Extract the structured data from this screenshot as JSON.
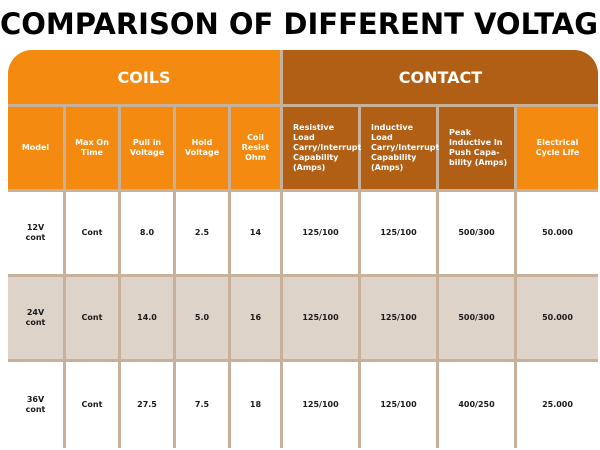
{
  "title": "COMPARISON OF DIFFERENT VOLTAGE",
  "groups": {
    "coils": "COILS",
    "contact": "CONTACT"
  },
  "columns": [
    "Model",
    "Max On Time",
    "Pull in Voltage",
    "Hold Voltage",
    "Coil Resist Ohm",
    "Resistive Load Carry/Interrupt Capability (Amps)",
    "Inductive Load Carry/Interrupt Capability (Amps)",
    "Peak Inductive In Push Capa-bility (Amps)",
    "Electrical Cycle Life"
  ],
  "rows": [
    [
      "12V cont",
      "Cont",
      "8.0",
      "2.5",
      "14",
      "125/100",
      "125/100",
      "500/300",
      "50.000"
    ],
    [
      "24V cont",
      "Cont",
      "14.0",
      "5.0",
      "16",
      "125/100",
      "125/100",
      "500/300",
      "50.000"
    ],
    [
      "36V cont",
      "Cont",
      "27.5",
      "7.5",
      "18",
      "125/100",
      "125/100",
      "400/250",
      "25.000"
    ]
  ],
  "colors": {
    "coils_orange": "#f48a0f",
    "contact_brown": "#b25f16",
    "row_shade": "#ddd3c9",
    "grid": "#c7b19b"
  }
}
